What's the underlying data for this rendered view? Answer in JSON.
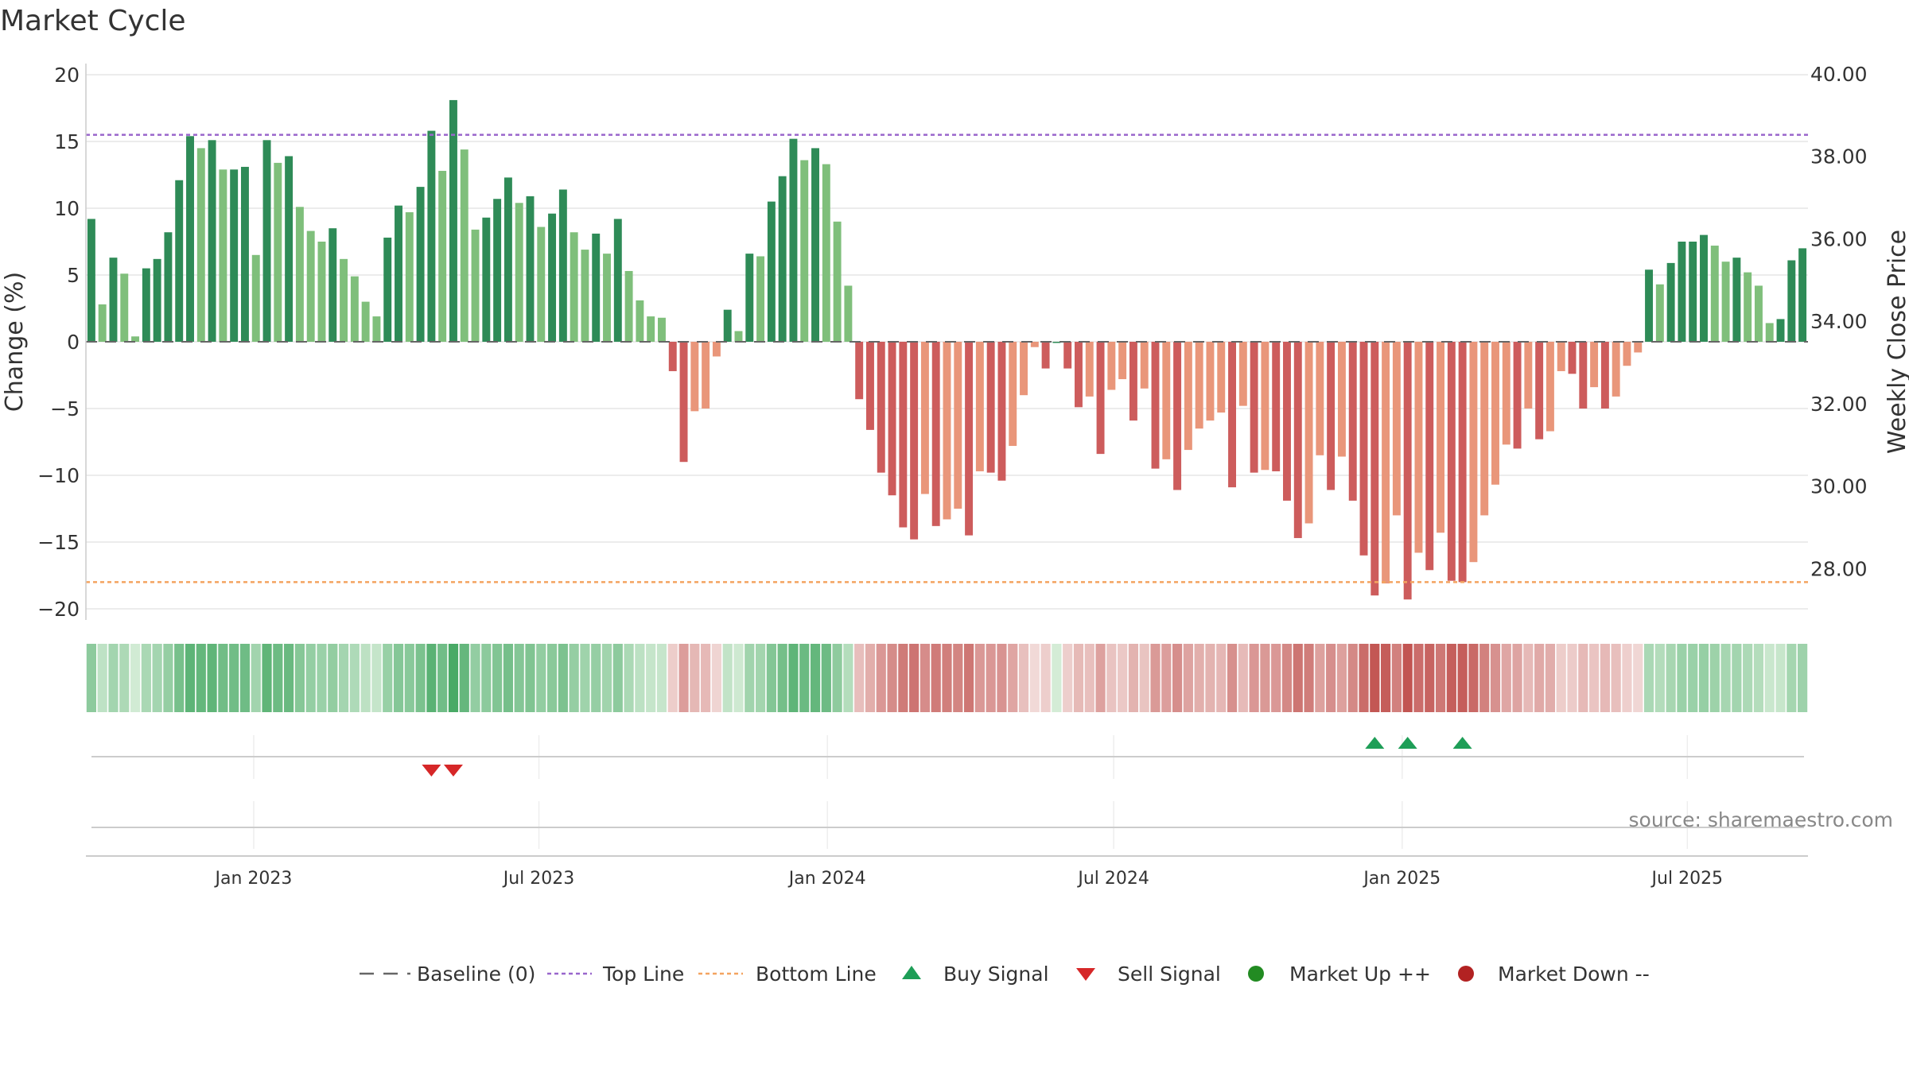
{
  "chart_data": {
    "type": "bar",
    "title": "Market Cycle",
    "ylabel": "Change (%)",
    "y2label": "Weekly Close Price",
    "ylim": [
      -21,
      21
    ],
    "y2lim": [
      26.7,
      40.3
    ],
    "yticks": [
      20,
      15,
      10,
      5,
      0,
      -5,
      -10,
      -15,
      -20
    ],
    "y2ticks": [
      "40.00",
      "38.00",
      "36.00",
      "34.00",
      "32.00",
      "30.00",
      "28.00"
    ],
    "top_line": 15.5,
    "bottom_line": -18,
    "x_tick_labels": [
      "Jan 2023",
      "Jul 2023",
      "Jan 2024",
      "Jul 2024",
      "Jan 2025",
      "Jul 2025"
    ],
    "x_tick_weeks": [
      15.3,
      41.3,
      67.6,
      93.7,
      120.0,
      146.0
    ],
    "sell_signal_weeks": [
      31.5,
      33.5
    ],
    "buy_signal_weeks": [
      117.5,
      120.5,
      125.5
    ],
    "source": "source: sharemaestro.com",
    "values": [
      9.2,
      2.8,
      6.3,
      5.1,
      0.4,
      5.5,
      6.2,
      8.2,
      12.1,
      15.4,
      14.5,
      15.1,
      12.9,
      12.9,
      13.1,
      6.5,
      15.1,
      13.4,
      13.9,
      10.1,
      8.3,
      7.5,
      8.5,
      6.2,
      4.9,
      3.0,
      1.9,
      7.8,
      10.2,
      9.7,
      11.6,
      15.8,
      12.8,
      18.1,
      14.4,
      8.4,
      9.3,
      10.7,
      12.3,
      10.4,
      10.9,
      8.6,
      9.6,
      11.4,
      8.2,
      6.9,
      8.1,
      6.6,
      9.2,
      5.3,
      3.1,
      1.9,
      1.8,
      -2.2,
      -9.0,
      -5.2,
      -5.0,
      -1.1,
      2.4,
      0.8,
      6.6,
      6.4,
      10.5,
      12.4,
      15.2,
      13.6,
      14.5,
      13.3,
      9.0,
      4.2,
      -4.3,
      -6.6,
      -9.8,
      -11.5,
      -13.9,
      -14.8,
      -11.4,
      -13.8,
      -13.3,
      -12.5,
      -14.5,
      -9.7,
      -9.8,
      -10.4,
      -7.8,
      -4.0,
      -0.4,
      -2.0,
      0.0,
      -2.0,
      -4.9,
      -4.1,
      -8.4,
      -3.6,
      -2.8,
      -5.9,
      -3.5,
      -9.5,
      -8.8,
      -11.1,
      -8.1,
      -6.5,
      -5.9,
      -5.3,
      -10.9,
      -4.8,
      -9.8,
      -9.6,
      -9.7,
      -11.9,
      -14.7,
      -13.6,
      -8.5,
      -11.1,
      -8.6,
      -11.9,
      -16.0,
      -19.0,
      -18.1,
      -13.0,
      -19.3,
      -15.8,
      -17.1,
      -14.3,
      -17.9,
      -18.0,
      -16.5,
      -13.0,
      -10.7,
      -7.7,
      -8.0,
      -5.0,
      -7.3,
      -6.7,
      -2.2,
      -2.4,
      -5.0,
      -3.4,
      -5.0,
      -4.1,
      -1.8,
      -0.8,
      5.4,
      4.3,
      5.9,
      7.5,
      7.5,
      8.0,
      7.2,
      6.0,
      6.3,
      5.2,
      4.2,
      1.4,
      1.7,
      6.1,
      7.0
    ],
    "legend": [
      "Baseline (0)",
      "Top Line",
      "Bottom Line",
      "Buy Signal",
      "Sell Signal",
      "Market Up ++",
      "Market Down --"
    ],
    "colors": {
      "up_strong": "#2e8b57",
      "up_light": "#7fbf7b",
      "down_strong": "#cd5c5c",
      "down_light": "#e9967a",
      "top_line": "#9966cc",
      "bottom_line": "#f4a460",
      "baseline": "#666666",
      "buy": "#1e9e57",
      "sell": "#d62728",
      "market_up": "#228b22",
      "market_down": "#b22222",
      "grid": "#e6e6e6",
      "axis": "#cccccc"
    }
  }
}
